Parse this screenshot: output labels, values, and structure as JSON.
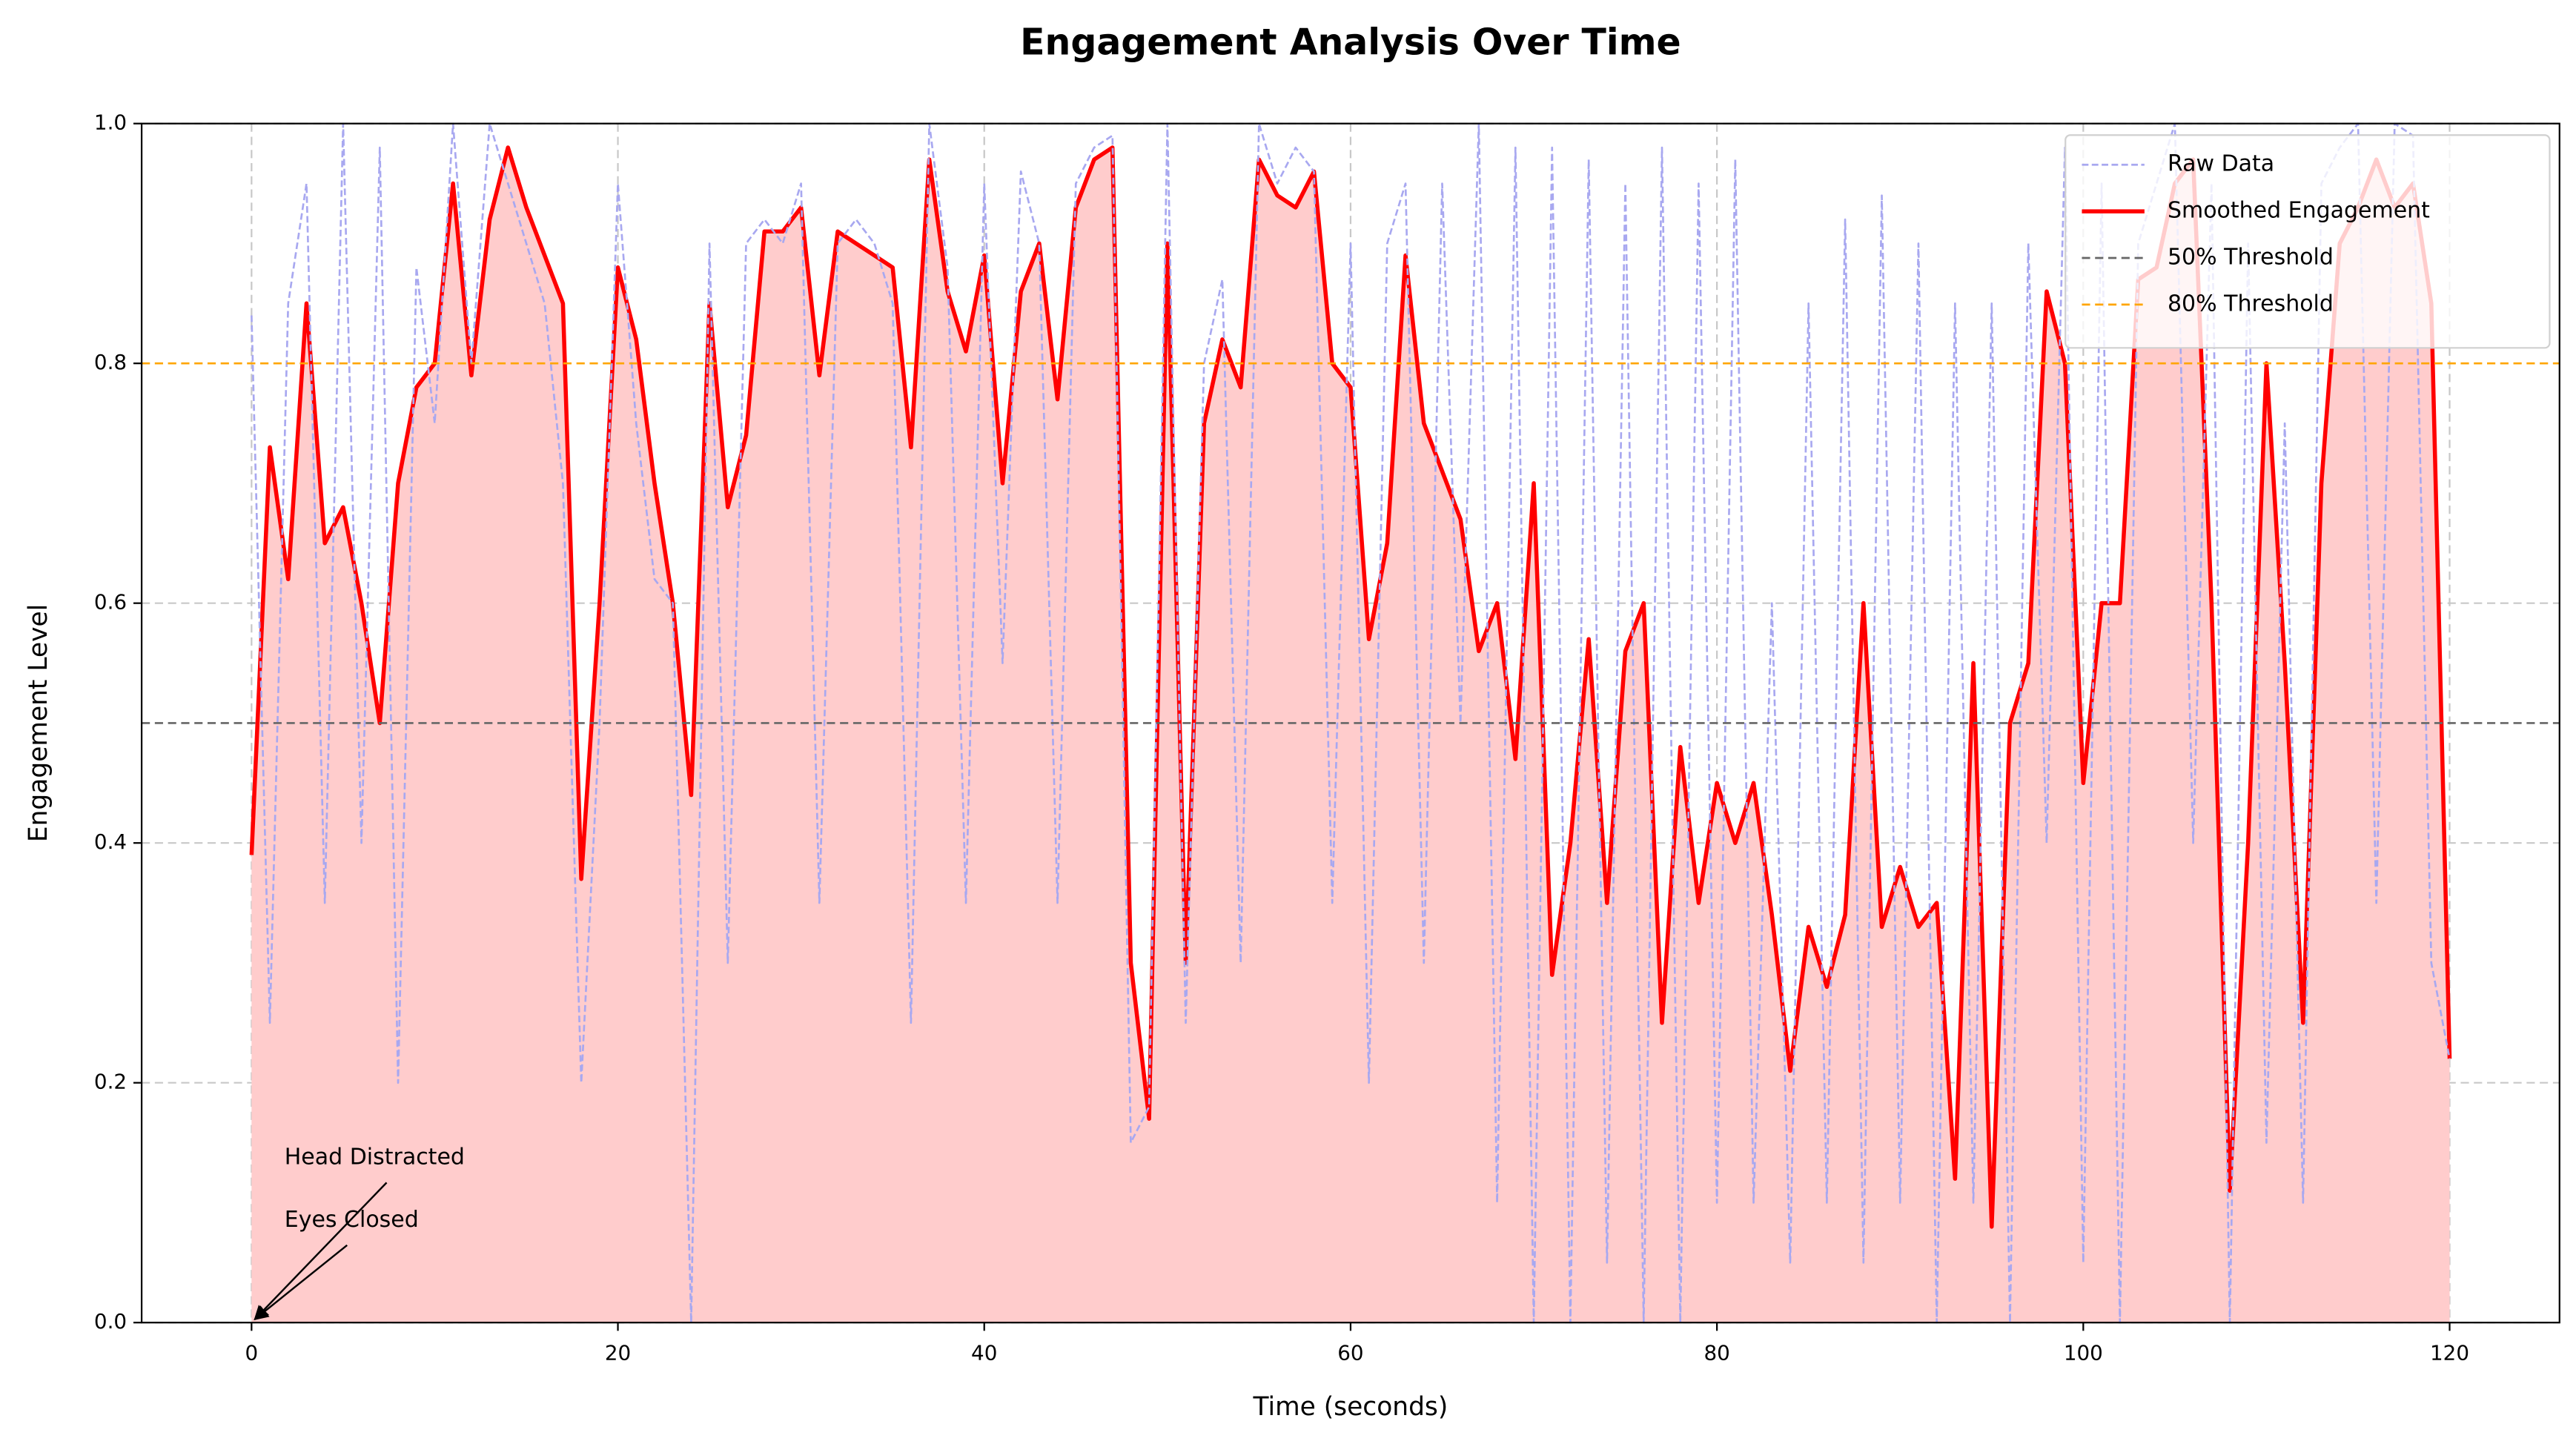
{
  "chart_data": {
    "type": "line",
    "title": "Engagement Analysis Over Time",
    "xlabel": "Time (seconds)",
    "ylabel": "Engagement Level",
    "x": [
      0,
      1,
      2,
      3,
      4,
      5,
      6,
      7,
      8,
      9,
      10,
      11,
      12,
      13,
      14,
      15,
      16,
      17,
      18,
      19,
      20,
      21,
      22,
      23,
      24,
      25,
      26,
      27,
      28,
      29,
      30,
      31,
      32,
      33,
      34,
      35,
      36,
      37,
      38,
      39,
      40,
      41,
      42,
      43,
      44,
      45,
      46,
      47,
      48,
      49,
      50,
      51,
      52,
      53,
      54,
      55,
      56,
      57,
      58,
      59,
      60,
      61,
      62,
      63,
      64,
      65,
      66,
      67,
      68,
      69,
      70,
      71,
      72,
      73,
      74,
      75,
      76,
      77,
      78,
      79,
      80,
      81,
      82,
      83,
      84,
      85,
      86,
      87,
      88,
      89,
      90,
      91,
      92,
      93,
      94,
      95,
      96,
      97,
      98,
      99,
      100,
      101,
      102,
      103,
      104,
      105,
      106,
      107,
      108,
      109,
      110,
      111,
      112,
      113,
      114,
      115,
      116,
      117,
      118,
      119,
      120
    ],
    "series": [
      {
        "name": "Raw Data",
        "color": "#a8a8f0",
        "dashed": true,
        "values": [
          0.84,
          0.25,
          0.85,
          0.95,
          0.35,
          1.0,
          0.4,
          0.98,
          0.2,
          0.88,
          0.75,
          1.0,
          0.8,
          1.0,
          0.95,
          0.9,
          0.85,
          0.7,
          0.2,
          0.5,
          0.95,
          0.75,
          0.62,
          0.6,
          0.0,
          0.9,
          0.3,
          0.9,
          0.92,
          0.9,
          0.95,
          0.35,
          0.9,
          0.92,
          0.9,
          0.85,
          0.25,
          1.0,
          0.88,
          0.35,
          0.95,
          0.55,
          0.96,
          0.9,
          0.35,
          0.95,
          0.98,
          0.99,
          0.15,
          0.18,
          1.0,
          0.25,
          0.8,
          0.87,
          0.3,
          1.0,
          0.95,
          0.98,
          0.96,
          0.35,
          0.9,
          0.2,
          0.9,
          0.95,
          0.3,
          0.95,
          0.5,
          1.0,
          0.1,
          0.98,
          0.0,
          0.98,
          0.0,
          0.97,
          0.05,
          0.95,
          0.0,
          0.98,
          0.0,
          0.95,
          0.1,
          0.97,
          0.1,
          0.6,
          0.05,
          0.85,
          0.1,
          0.92,
          0.05,
          0.94,
          0.1,
          0.9,
          0.0,
          0.85,
          0.1,
          0.85,
          0.0,
          0.9,
          0.4,
          0.98,
          0.05,
          0.95,
          0.0,
          0.9,
          0.95,
          1.0,
          0.4,
          0.95,
          0.0,
          0.9,
          0.15,
          0.75,
          0.1,
          0.95,
          0.98,
          1.0,
          0.35,
          1.0,
          0.99,
          0.3,
          0.22
        ]
      },
      {
        "name": "Smoothed Engagement",
        "color": "#ff0000",
        "fill_color": "#ffcccc",
        "values": [
          0.39,
          0.73,
          0.62,
          0.85,
          0.65,
          0.68,
          0.6,
          0.5,
          0.7,
          0.78,
          0.8,
          0.95,
          0.79,
          0.92,
          0.98,
          0.93,
          0.89,
          0.85,
          0.37,
          0.6,
          0.88,
          0.82,
          0.7,
          0.6,
          0.44,
          0.85,
          0.68,
          0.74,
          0.91,
          0.91,
          0.93,
          0.79,
          0.91,
          0.9,
          0.89,
          0.88,
          0.73,
          0.97,
          0.86,
          0.81,
          0.89,
          0.7,
          0.86,
          0.9,
          0.77,
          0.93,
          0.97,
          0.98,
          0.3,
          0.17,
          0.9,
          0.3,
          0.75,
          0.82,
          0.78,
          0.97,
          0.94,
          0.93,
          0.96,
          0.8,
          0.78,
          0.57,
          0.65,
          0.89,
          0.75,
          0.71,
          0.67,
          0.56,
          0.6,
          0.47,
          0.7,
          0.29,
          0.4,
          0.57,
          0.35,
          0.56,
          0.6,
          0.25,
          0.48,
          0.35,
          0.45,
          0.4,
          0.45,
          0.34,
          0.21,
          0.33,
          0.28,
          0.34,
          0.6,
          0.33,
          0.38,
          0.33,
          0.35,
          0.12,
          0.55,
          0.08,
          0.5,
          0.55,
          0.86,
          0.8,
          0.45,
          0.6,
          0.6,
          0.87,
          0.88,
          0.95,
          0.97,
          0.6,
          0.11,
          0.4,
          0.8,
          0.55,
          0.25,
          0.7,
          0.9,
          0.93,
          0.97,
          0.93,
          0.95,
          0.85,
          0.22
        ]
      }
    ],
    "thresholds": [
      {
        "name": "50% Threshold",
        "value": 0.5,
        "color": "#666666"
      },
      {
        "name": "80% Threshold",
        "value": 0.8,
        "color": "#ffa500"
      }
    ],
    "annotations": [
      {
        "text": "Head Distracted",
        "x": 0,
        "y": 0
      },
      {
        "text": "Eyes Closed",
        "x": 0,
        "y": 0
      }
    ],
    "xlim": [
      -6,
      126
    ],
    "ylim": [
      0,
      1
    ],
    "xticks": [
      0,
      20,
      40,
      60,
      80,
      100,
      120
    ],
    "yticks": [
      {
        "value": 0,
        "label": "0.0"
      },
      0.2,
      0.4,
      0.6,
      0.8,
      {
        "value": 1,
        "label": "1.0"
      }
    ],
    "grid": true,
    "legend": "upper right"
  }
}
